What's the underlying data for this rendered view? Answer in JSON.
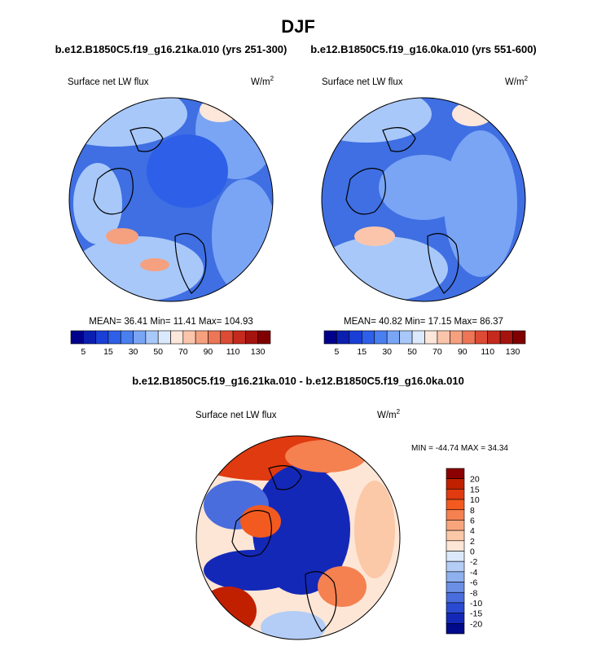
{
  "title": "DJF",
  "panels": [
    {
      "subtitle": "b.e12.B1850C5.f19_g16.21ka.010 (yrs 251-300)",
      "field": "Surface net LW flux",
      "units": "W/m",
      "units_sup": "2",
      "stats": "MEAN=  36.41  Min=  11.41  Max= 104.93"
    },
    {
      "subtitle": "b.e12.B1850C5.f19_g16.0ka.010 (yrs 551-600)",
      "field": "Surface net LW flux",
      "units": "W/m",
      "units_sup": "2",
      "stats": "MEAN=  40.82  Min=  17.15  Max=  86.37"
    }
  ],
  "colorbar": {
    "labels": [
      "5",
      "15",
      "30",
      "50",
      "70",
      "90",
      "110",
      "130"
    ],
    "colors": [
      "#00008b",
      "#0a1fb0",
      "#1a3fd6",
      "#2e5fe8",
      "#4a7ff0",
      "#7aa5f5",
      "#a8c8fa",
      "#dbe9fd",
      "#fde6da",
      "#fbc5ac",
      "#f5a07f",
      "#ec7656",
      "#dd4b34",
      "#c42a1d",
      "#a5130f",
      "#800000"
    ]
  },
  "difference": {
    "title": "b.e12.B1850C5.f19_g16.21ka.010 - b.e12.B1850C5.f19_g16.0ka.010",
    "field": "Surface net LW flux",
    "units": "W/m",
    "units_sup": "2",
    "stats": "MIN = -44.74 MAX =  34.34",
    "colorbar": {
      "labels": [
        "20",
        "15",
        "10",
        "8",
        "6",
        "4",
        "2",
        "0",
        "-2",
        "-4",
        "-6",
        "-8",
        "-10",
        "-15",
        "-20"
      ],
      "colors": [
        "#8b0000",
        "#c02000",
        "#e03a10",
        "#f25a20",
        "#f58050",
        "#f9a57c",
        "#fbc8a8",
        "#fde6d6",
        "#dbe8fb",
        "#b4cdf6",
        "#8fb0ef",
        "#6c8fe6",
        "#4a6dde",
        "#2a4ad2",
        "#1428b8",
        "#000a8b"
      ]
    }
  }
}
